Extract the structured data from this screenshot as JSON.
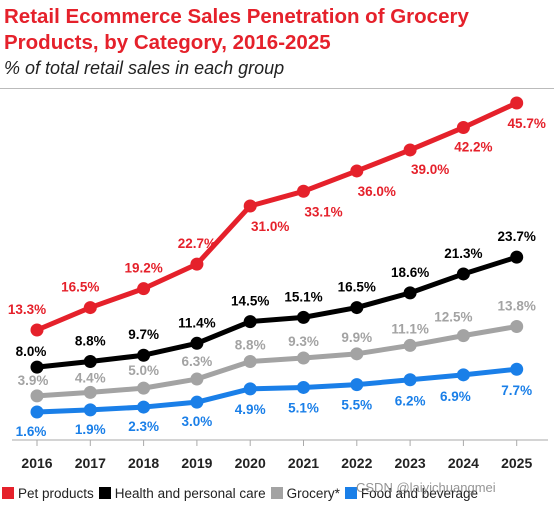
{
  "title": "Retail Ecommerce Sales Penetration of Grocery Products, by Category, 2016-2025",
  "subtitle": "% of total retail sales in each group",
  "watermark": "CSDN @laiyichuangmei",
  "chart_data": {
    "type": "line",
    "title": "Retail Ecommerce Sales Penetration of Grocery Products, by Category, 2016-2025",
    "subtitle": "% of total retail sales in each group",
    "xlabel": "",
    "ylabel": "",
    "categories": [
      "2016",
      "2017",
      "2018",
      "2019",
      "2020",
      "2021",
      "2022",
      "2023",
      "2024",
      "2025"
    ],
    "ylim": [
      0,
      48
    ],
    "grid": false,
    "legend_position": "bottom",
    "series": [
      {
        "name": "Pet products",
        "color": "#e5212b",
        "values": [
          13.3,
          16.5,
          19.2,
          22.7,
          31.0,
          33.1,
          36.0,
          39.0,
          42.2,
          45.7
        ],
        "labels": [
          "13.3%",
          "16.5%",
          "19.2%",
          "22.7%",
          "31.0%",
          "33.1%",
          "36.0%",
          "39.0%",
          "42.2%",
          "45.7%"
        ]
      },
      {
        "name": "Health and personal care",
        "color": "#000000",
        "values": [
          8.0,
          8.8,
          9.7,
          11.4,
          14.5,
          15.1,
          16.5,
          18.6,
          21.3,
          23.7
        ],
        "labels": [
          "8.0%",
          "8.8%",
          "9.7%",
          "11.4%",
          "14.5%",
          "15.1%",
          "16.5%",
          "18.6%",
          "21.3%",
          "23.7%"
        ]
      },
      {
        "name": "Grocery*",
        "color": "#a3a3a3",
        "values": [
          3.9,
          4.4,
          5.0,
          6.3,
          8.8,
          9.3,
          9.9,
          11.1,
          12.5,
          13.8
        ],
        "labels": [
          "3.9%",
          "4.4%",
          "5.0%",
          "6.3%",
          "8.8%",
          "9.3%",
          "9.9%",
          "11.1%",
          "12.5%",
          "13.8%"
        ]
      },
      {
        "name": "Food and beverage",
        "color": "#1a7fe8",
        "values": [
          1.6,
          1.9,
          2.3,
          3.0,
          4.9,
          5.1,
          5.5,
          6.2,
          6.9,
          7.7
        ],
        "labels": [
          "1.6%",
          "1.9%",
          "2.3%",
          "3.0%",
          "4.9%",
          "5.1%",
          "5.5%",
          "6.2%",
          "6.9%",
          "7.7%"
        ]
      }
    ]
  }
}
